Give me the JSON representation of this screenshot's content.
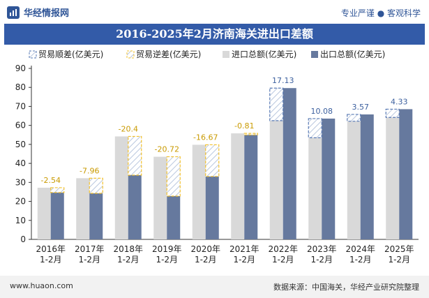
{
  "header": {
    "brand": "华经情报网",
    "tagline": "专业严谨 ● 客观科学"
  },
  "title": "2016-2025年2月济南海关进出口差额",
  "footer": {
    "website": "www.huaon.com",
    "source": "数据来源：中国海关，华经产业研究院整理"
  },
  "colors": {
    "surplus": "#5a7bb5",
    "deficit": "#f2c12e",
    "import": "#d9d9d9",
    "export": "#66799e",
    "title_bg": "#335ba8"
  },
  "chart_data": {
    "type": "bar",
    "title": "2016-2025年2月济南海关进出口差额",
    "categories": [
      "2016年\n1-2月",
      "2017年\n1-2月",
      "2018年\n1-2月",
      "2019年\n1-2月",
      "2020年\n1-2月",
      "2021年\n1-2月",
      "2022年\n1-2月",
      "2023年\n1-2月",
      "2024年\n1-2月",
      "2025年\n1-2月"
    ],
    "legend": [
      "贸易顺差(亿美元)",
      "贸易逆差(亿美元)",
      "进口总额(亿美元)",
      "出口总额(亿美元)"
    ],
    "series": [
      {
        "name": "进口总额(亿美元)",
        "values": [
          27.2,
          32.2,
          54.2,
          43.5,
          49.8,
          55.8,
          62.5,
          53.5,
          62.2,
          64.2
        ]
      },
      {
        "name": "出口总额(亿美元)",
        "values": [
          24.66,
          24.24,
          33.8,
          22.78,
          33.13,
          54.99,
          79.63,
          63.58,
          65.77,
          68.53
        ]
      }
    ],
    "balance": [
      -2.54,
      -7.96,
      -20.4,
      -20.72,
      -16.67,
      -0.81,
      17.13,
      10.08,
      3.57,
      4.33
    ],
    "balance_labels": [
      "-2.54",
      "-7.96",
      "-20.4",
      "-20.72",
      "-16.67",
      "-0.81",
      "17.13",
      "10.08",
      "3.57",
      "4.33"
    ],
    "yticks": [
      "0",
      "10",
      "20",
      "30",
      "40",
      "50",
      "60",
      "70",
      "80",
      "90"
    ],
    "ylim": [
      0,
      90
    ],
    "legend_position": "top-left"
  }
}
